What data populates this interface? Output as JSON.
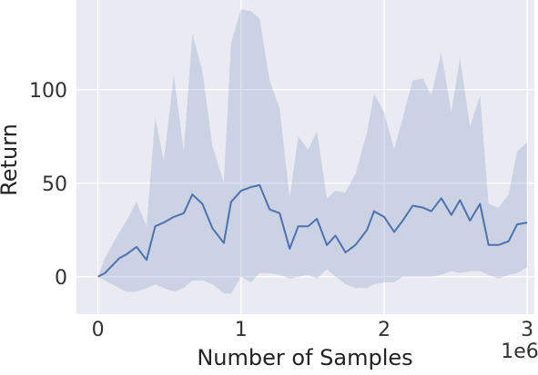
{
  "chart_data": {
    "type": "line",
    "xlabel": "Number of Samples",
    "ylabel": "Return",
    "x_offset_label": "1e6",
    "xlim": [
      -0.15,
      3.05
    ],
    "ylim": [
      -20,
      148
    ],
    "x_ticks": [
      0,
      1,
      2,
      3
    ],
    "x_tick_labels": [
      "0",
      "1",
      "2",
      "3"
    ],
    "y_ticks": [
      0,
      50,
      100
    ],
    "y_tick_labels": [
      "0",
      "50",
      "100"
    ],
    "grid": true,
    "legend": "none",
    "colors": {
      "line": "#4c72b0",
      "band": "#4c72b0",
      "background": "#eaeaf2",
      "grid": "#ffffff"
    },
    "series": [
      {
        "x": [
          0,
          0.05,
          0.15,
          0.2,
          0.27,
          0.34,
          0.4,
          0.46,
          0.53,
          0.6,
          0.66,
          0.73,
          0.8,
          0.88,
          0.93,
          1.0,
          1.07,
          1.13,
          1.2,
          1.27,
          1.34,
          1.4,
          1.47,
          1.53,
          1.6,
          1.66,
          1.73,
          1.8,
          1.88,
          1.93,
          2.0,
          2.07,
          2.13,
          2.2,
          2.27,
          2.33,
          2.4,
          2.47,
          2.53,
          2.6,
          2.67,
          2.73,
          2.8,
          2.87,
          2.93,
          3.0
        ],
        "y": [
          0,
          2,
          10,
          12,
          16,
          9,
          27,
          29,
          32,
          34,
          44,
          39,
          26,
          18,
          40,
          46,
          48,
          49,
          36,
          34,
          15,
          27,
          27,
          31,
          17,
          22,
          13,
          17,
          25,
          35,
          32,
          24,
          30,
          38,
          37,
          35,
          42,
          33,
          41,
          30,
          39,
          17,
          17,
          19,
          28,
          29
        ],
        "lower": [
          0,
          -2,
          -6,
          -8,
          -8,
          -6,
          -4,
          -6,
          -8,
          -6,
          -2,
          -2,
          -4,
          -9,
          -9,
          0,
          -3,
          2,
          2,
          1,
          -1,
          0,
          1,
          -1,
          4,
          0,
          -4,
          -6,
          -6,
          -4,
          -3,
          -3,
          0,
          0,
          0,
          0,
          1,
          3,
          2,
          3,
          3,
          1,
          -1,
          1,
          2,
          5
        ],
        "upper": [
          0,
          10,
          24,
          30,
          40,
          27,
          85,
          62,
          108,
          67,
          130,
          110,
          70,
          50,
          125,
          143,
          142,
          138,
          105,
          90,
          42,
          75,
          68,
          78,
          42,
          46,
          45,
          55,
          77,
          98,
          88,
          68,
          85,
          105,
          106,
          97,
          120,
          88,
          117,
          80,
          97,
          39,
          37,
          44,
          67,
          72
        ]
      }
    ]
  }
}
